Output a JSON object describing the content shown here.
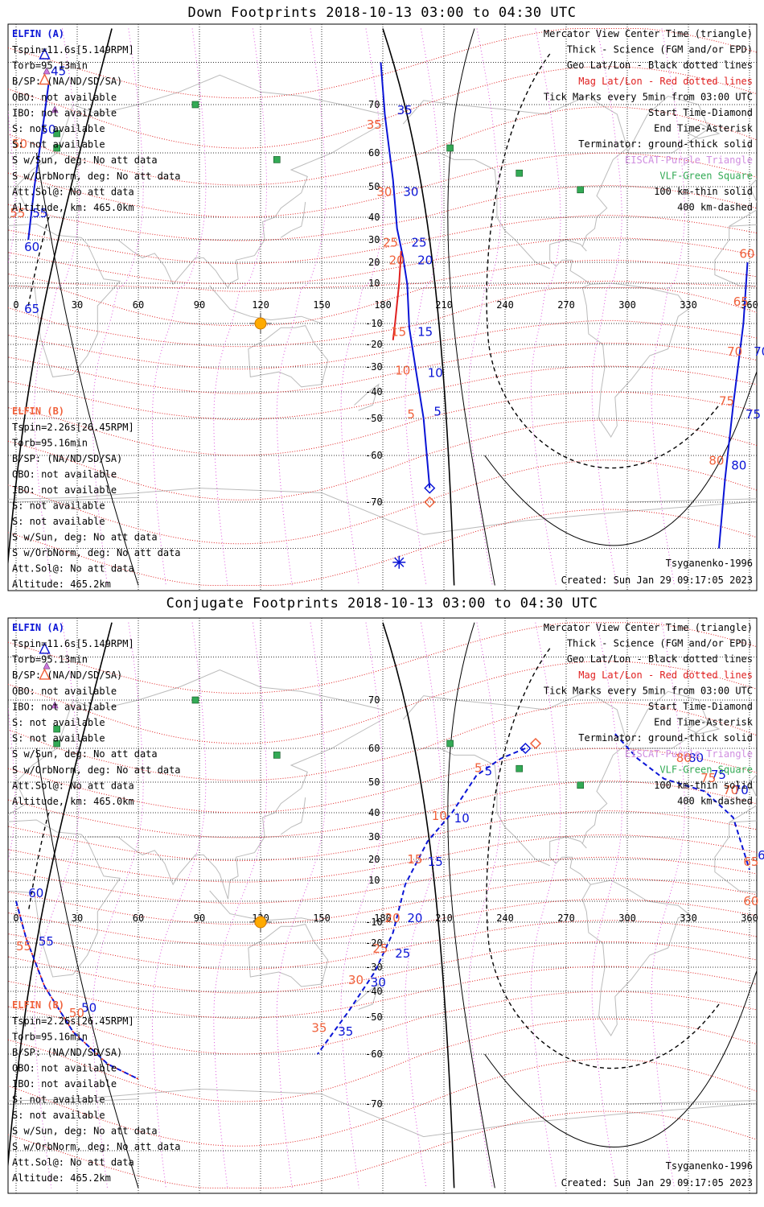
{
  "colors": {
    "mag": "#e02020",
    "geo": "#333333",
    "magenta": "#dd55dd",
    "elfin_a": "#0a14d6",
    "elfin_b": "#f0603a",
    "vlf": "#33aa55",
    "coast": "#bbbbbb",
    "sun": "#ffaa00",
    "term": "#000000"
  },
  "chart_data": [
    {
      "type": "map",
      "title": "Down Footprints 2018-10-13 03:00 to 04:30 UTC",
      "x_ticks": [
        "0",
        "30",
        "60",
        "90",
        "120",
        "150",
        "180",
        "210",
        "240",
        "270",
        "300",
        "330",
        "360"
      ],
      "y_ticks": [
        "70",
        "60",
        "50",
        "40",
        "30",
        "20",
        "10",
        "-10",
        "-20",
        "-30",
        "-40",
        "-50",
        "-60",
        "-70"
      ],
      "legend": {
        "lines": [
          "Mercator View Center Time (triangle)",
          "Thick - Science (FGM and/or EPD)",
          "Geo Lat/Lon - Black dotted lines",
          "Mag Lat/Lon - Red dotted lines",
          "Tick Marks every 5min from 03:00 UTC",
          "Start Time-Diamond",
          "End Time-Asterisk",
          "Terminator: ground-thick solid",
          "EISCAT-Purple Triangle",
          "VLF-Green Square",
          "100 km-thin solid",
          "400 km-dashed"
        ]
      },
      "model": "Tsyganenko-1996",
      "created": "Created: Sun Jan 29 09:17:05 2023",
      "elfin_a": {
        "header": "ELFIN (A)",
        "info": [
          "Tspin=11.6s[5.149RPM]",
          "Torb=95.13min",
          "B/SP: (NA/ND/SD/SA)",
          "OBO: not available",
          "IBO: not available",
          "S: not available",
          "S: not available",
          "S w/Sun, deg: No att data",
          "S w/OrbNorm, deg: No att data",
          "Att.Sol@: No att data",
          "Altitude, km: 465.0km"
        ]
      },
      "elfin_b": {
        "header": "ELFIN (B)",
        "info": [
          "Tspin=2.26s[26.45RPM]",
          "Torb=95.16min",
          "B/SP: (NA/ND/SD/SA)",
          "OBO: not available",
          "IBO: not available",
          "S: not available",
          "S: not available",
          "S w/Sun, deg: No att data",
          "S w/OrbNorm, deg: No att data",
          "Att.Sol@: No att data",
          "Altitude: 465.2km"
        ]
      },
      "series": [
        {
          "name": "ELFIN (A) track",
          "color": "#0a14d6",
          "points": [
            [
              203,
              -67
            ],
            [
              200,
              -50
            ],
            [
              196,
              -30
            ],
            [
              193,
              -12
            ],
            [
              192,
              8
            ],
            [
              190,
              22
            ],
            [
              187,
              35
            ],
            [
              185,
              52
            ],
            [
              181,
              68
            ],
            [
              179,
              80
            ]
          ]
        },
        {
          "name": "ELFIN (A) track 2",
          "color": "#0a14d6",
          "points": [
            [
              6,
              30
            ],
            [
              9,
              50
            ],
            [
              13,
              65
            ],
            [
              16,
              75
            ]
          ]
        },
        {
          "name": "ELFIN (A) track 3",
          "color": "#0a14d6",
          "points": [
            [
              359,
              20
            ],
            [
              357,
              -10
            ],
            [
              352,
              -45
            ],
            [
              348,
              -65
            ],
            [
              345,
              -80
            ]
          ]
        }
      ],
      "tick_labels_a": [
        {
          "text": "5",
          "lon": 205,
          "lat": -49
        },
        {
          "text": "10",
          "lon": 202,
          "lat": -34
        },
        {
          "text": "15",
          "lon": 197,
          "lat": -16
        },
        {
          "text": "20",
          "lon": 197,
          "lat": 19
        },
        {
          "text": "25",
          "lon": 194,
          "lat": 27
        },
        {
          "text": "30",
          "lon": 190,
          "lat": 47
        },
        {
          "text": "35",
          "lon": 187,
          "lat": 68
        },
        {
          "text": "45",
          "lon": 17,
          "lat": 77
        },
        {
          "text": "50",
          "lon": 12,
          "lat": 64
        },
        {
          "text": "55",
          "lon": 8,
          "lat": 40
        },
        {
          "text": "60",
          "lon": 4,
          "lat": 25
        },
        {
          "text": "65",
          "lon": 4,
          "lat": -7
        },
        {
          "text": "70",
          "lon": 362,
          "lat": -25
        },
        {
          "text": "75",
          "lon": 358,
          "lat": -50
        },
        {
          "text": "80",
          "lon": 351,
          "lat": -63
        }
      ],
      "tick_labels_b": [
        {
          "text": "5",
          "lon": 192,
          "lat": -50
        },
        {
          "text": "10",
          "lon": 186,
          "lat": -33
        },
        {
          "text": "15",
          "lon": 184,
          "lat": -16
        },
        {
          "text": "20",
          "lon": 183,
          "lat": 19
        },
        {
          "text": "25",
          "lon": 180,
          "lat": 27
        },
        {
          "text": "30",
          "lon": 177,
          "lat": 47
        },
        {
          "text": "35",
          "lon": 172,
          "lat": 65
        },
        {
          "text": "50",
          "lon": -2,
          "lat": 61
        },
        {
          "text": "55",
          "lon": -3,
          "lat": 40
        },
        {
          "text": "60",
          "lon": 355,
          "lat": 22
        },
        {
          "text": "65",
          "lon": 352,
          "lat": -5
        },
        {
          "text": "70",
          "lon": 349,
          "lat": -25
        },
        {
          "text": "75",
          "lon": 345,
          "lat": -45
        },
        {
          "text": "80",
          "lon": 340,
          "lat": -62
        }
      ],
      "start_a": {
        "lon": 203,
        "lat": -67
      },
      "start_b": {
        "lon": 203,
        "lat": -70
      },
      "center_a": {
        "lon": 14,
        "lat": 82
      },
      "center_b": {
        "lon": 14,
        "lat": 76
      },
      "end_marker": {
        "lon": 188,
        "lat": -83
      }
    },
    {
      "type": "map",
      "title": "Conjugate Footprints 2018-10-13 03:00 to 04:30 UTC",
      "x_ticks": [
        "0",
        "30",
        "60",
        "90",
        "120",
        "150",
        "180",
        "210",
        "240",
        "270",
        "300",
        "330",
        "360"
      ],
      "y_ticks": [
        "70",
        "60",
        "50",
        "40",
        "30",
        "20",
        "10",
        "-10",
        "-20",
        "-30",
        "-40",
        "-50",
        "-60",
        "-70"
      ],
      "legend": {
        "lines": [
          "Mercator View Center Time (triangle)",
          "Thick - Science (FGM and/or EPD)",
          "Geo Lat/Lon - Black dotted lines",
          "Mag Lat/Lon - Red dotted lines",
          "Tick Marks every 5min from 03:00 UTC",
          "Start Time-Diamond",
          "End Time-Asterisk",
          "Terminator: ground-thick solid",
          "EISCAT-Purple Triangle",
          "VLF-Green Square",
          "100 km-thin solid",
          "400 km-dashed"
        ]
      },
      "model": "Tsyganenko-1996",
      "created": "Created: Sun Jan 29 09:17:05 2023",
      "elfin_a": {
        "header": "ELFIN (A)",
        "info": [
          "Tspin=11.6s[5.149RPM]",
          "Torb=95.13min",
          "B/SP: (NA/ND/SD/SA)",
          "OBO: not available",
          "IBO: not available",
          "S: not available",
          "S: not available",
          "S w/Sun, deg: No att data",
          "S w/OrbNorm, deg: No att data",
          "Att.Sol@: No att data",
          "Altitude, km: 465.0km"
        ]
      },
      "elfin_b": {
        "header": "ELFIN (B)",
        "info": [
          "Tspin=2.26s[26.45RPM]",
          "Torb=95.16min",
          "B/SP: (NA/ND/SD/SA)",
          "OBO: not available",
          "IBO: not available",
          "S: not available",
          "S: not available",
          "S w/Sun, deg: No att data",
          "S w/OrbNorm, deg: No att data",
          "Att.Sol@: No att data",
          "Altitude: 465.2km"
        ]
      },
      "series": [
        {
          "name": "ELFIN (A) conjugate track",
          "color": "#0a14d6",
          "points": [
            [
              250,
              60
            ],
            [
              238,
              57
            ],
            [
              226,
              52
            ],
            [
              214,
              40
            ],
            [
              202,
              28
            ],
            [
              191,
              8
            ],
            [
              185,
              -15
            ],
            [
              176,
              -32
            ],
            [
              163,
              -48
            ],
            [
              148,
              -60
            ]
          ]
        },
        {
          "name": "ELFIN (A) conjugate track 2",
          "color": "#0a14d6",
          "points": [
            [
              294,
              63
            ],
            [
              305,
              57
            ],
            [
              318,
              51
            ],
            [
              338,
              47
            ],
            [
              352,
              38
            ],
            [
              360,
              15
            ]
          ]
        },
        {
          "name": "ELFIN (A) conjugate track 3",
          "color": "#0a14d6",
          "points": [
            [
              0,
              0
            ],
            [
              5,
              -18
            ],
            [
              14,
              -38
            ],
            [
              28,
              -54
            ],
            [
              45,
              -62
            ],
            [
              60,
              -65
            ]
          ]
        }
      ],
      "tick_labels_a": [
        {
          "text": "5",
          "lon": 230,
          "lat": 52
        },
        {
          "text": "10",
          "lon": 215,
          "lat": 36
        },
        {
          "text": "15",
          "lon": 202,
          "lat": 17
        },
        {
          "text": "20",
          "lon": 192,
          "lat": -10
        },
        {
          "text": "25",
          "lon": 186,
          "lat": -26
        },
        {
          "text": "30",
          "lon": 174,
          "lat": -38
        },
        {
          "text": "35",
          "lon": 158,
          "lat": -55
        },
        {
          "text": "50",
          "lon": 32,
          "lat": -48
        },
        {
          "text": "55",
          "lon": 11,
          "lat": -21
        },
        {
          "text": "60",
          "lon": 6,
          "lat": 2
        },
        {
          "text": "65",
          "lon": 364,
          "lat": 20
        },
        {
          "text": "70",
          "lon": 352,
          "lat": 46
        },
        {
          "text": "75",
          "lon": 341,
          "lat": 51
        },
        {
          "text": "80",
          "lon": 330,
          "lat": 56
        }
      ],
      "tick_labels_b": [
        {
          "text": "5",
          "lon": 225,
          "lat": 53
        },
        {
          "text": "10",
          "lon": 204,
          "lat": 37
        },
        {
          "text": "15",
          "lon": 192,
          "lat": 18
        },
        {
          "text": "20",
          "lon": 181,
          "lat": -10
        },
        {
          "text": "25",
          "lon": 175,
          "lat": -24
        },
        {
          "text": "30",
          "lon": 163,
          "lat": -37
        },
        {
          "text": "35",
          "lon": 145,
          "lat": -54
        },
        {
          "text": "50",
          "lon": 26,
          "lat": -50
        },
        {
          "text": "55",
          "lon": 0,
          "lat": -23
        },
        {
          "text": "60",
          "lon": 357,
          "lat": -2
        },
        {
          "text": "65",
          "lon": 357,
          "lat": 17
        },
        {
          "text": "70",
          "lon": 347,
          "lat": 46
        },
        {
          "text": "75",
          "lon": 336,
          "lat": 50
        },
        {
          "text": "80",
          "lon": 324,
          "lat": 56
        }
      ],
      "start_a": {
        "lon": 250,
        "lat": 60
      },
      "start_b": {
        "lon": 255,
        "lat": 61
      },
      "center_a": {
        "lon": 14,
        "lat": 82
      },
      "center_b": {
        "lon": 14,
        "lat": 76
      },
      "end_marker": null
    }
  ]
}
